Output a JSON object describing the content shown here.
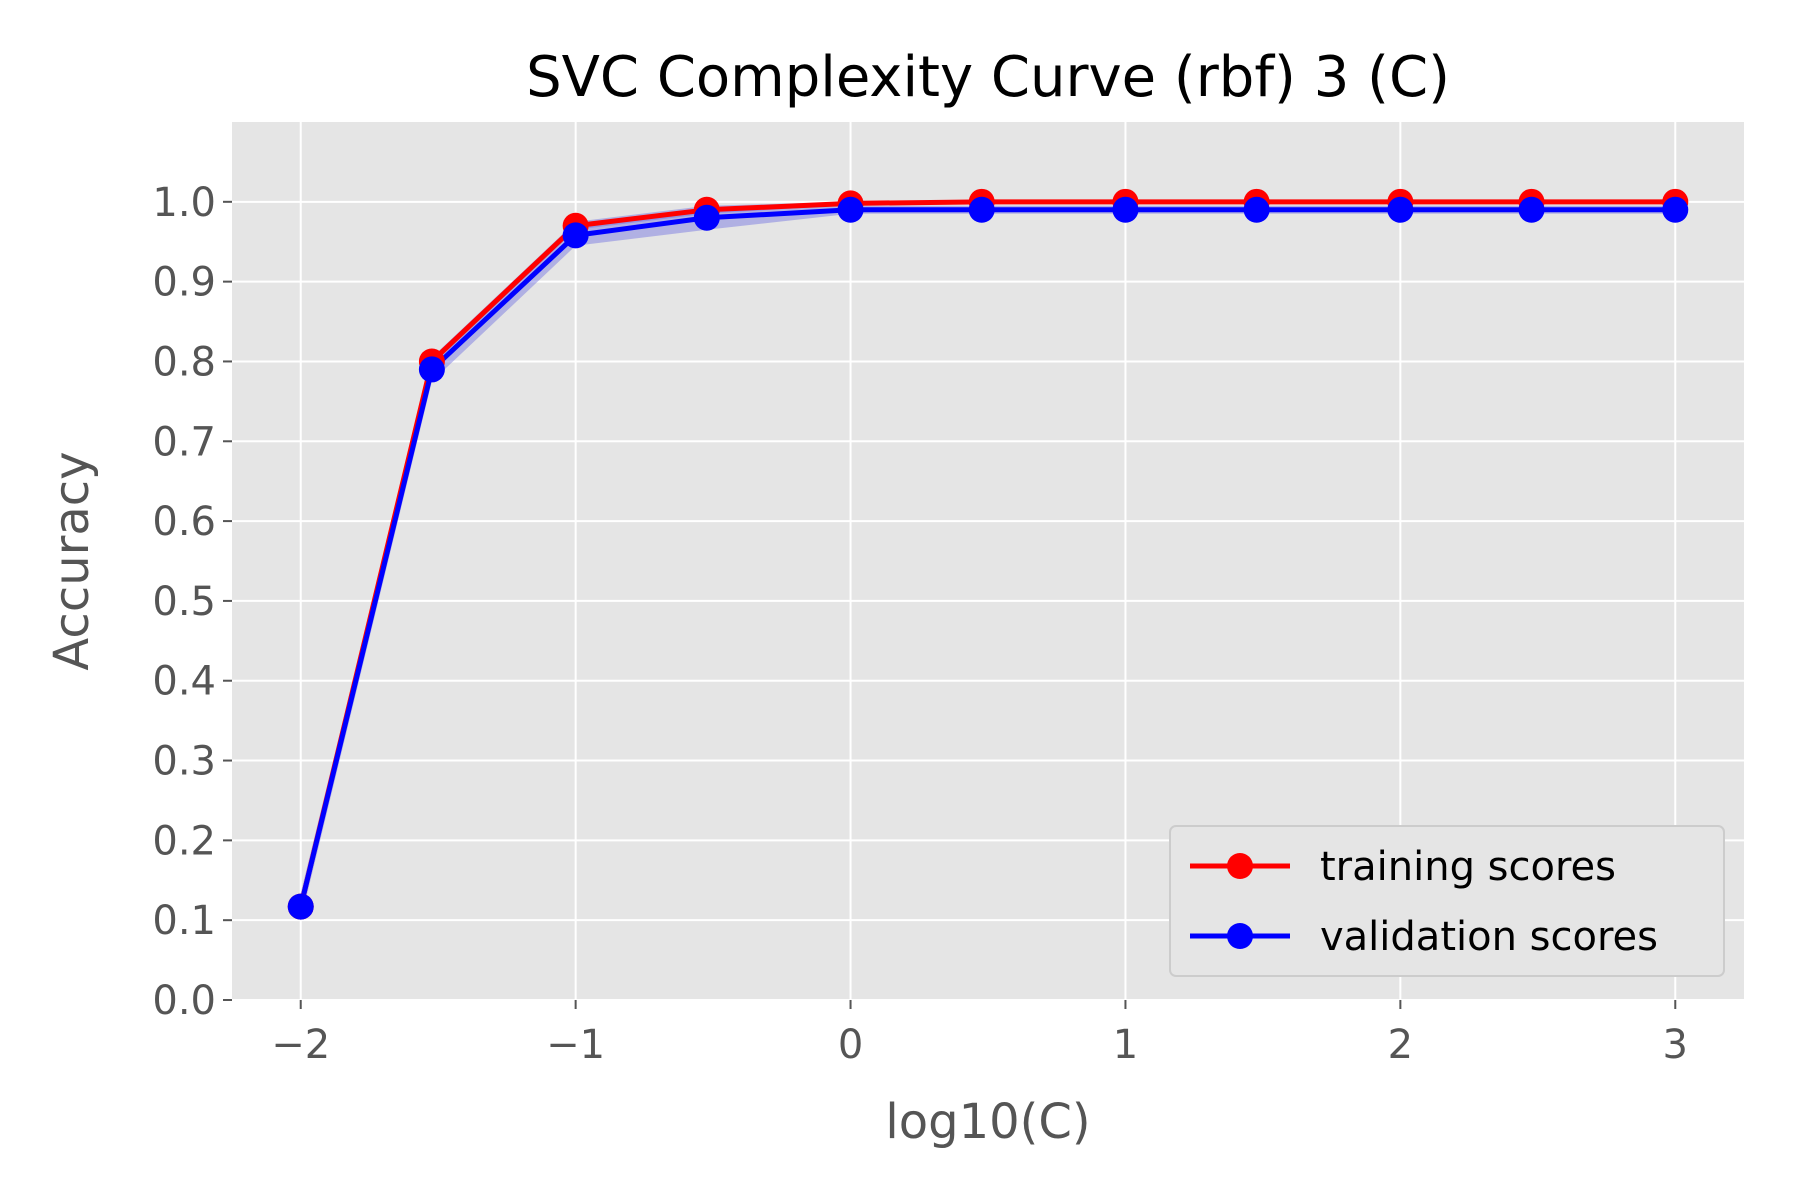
{
  "chart_data": {
    "type": "line",
    "title": "SVC Complexity Curve (rbf) 3 (C)",
    "xlabel": "log10(C)",
    "ylabel": "Accuracy",
    "xlim": [
      -2.25,
      3.25
    ],
    "ylim": [
      0.0,
      1.1
    ],
    "xticks": [
      -2,
      -1,
      0,
      1,
      2,
      3
    ],
    "xtick_labels": [
      "−2",
      "−1",
      "0",
      "1",
      "2",
      "3"
    ],
    "yticks": [
      0.0,
      0.1,
      0.2,
      0.3,
      0.4,
      0.5,
      0.6,
      0.7,
      0.8,
      0.9,
      1.0
    ],
    "ytick_labels": [
      "0.0",
      "0.1",
      "0.2",
      "0.3",
      "0.4",
      "0.5",
      "0.6",
      "0.7",
      "0.8",
      "0.9",
      "1.0"
    ],
    "grid": true,
    "legend_position": "lower-right",
    "x": [
      -2.0,
      -1.5229,
      -1.0,
      -0.5229,
      0.0,
      0.4771,
      1.0,
      1.4771,
      2.0,
      2.4771,
      3.0
    ],
    "series": [
      {
        "name": "training scores",
        "color": "#ff0000",
        "values": [
          0.117,
          0.8,
          0.97,
          0.99,
          0.998,
          1.0,
          1.0,
          1.0,
          1.0,
          1.0,
          1.0
        ],
        "band_lower": [
          0.11,
          0.795,
          0.965,
          0.985,
          0.996,
          0.999,
          1.0,
          1.0,
          1.0,
          1.0,
          1.0
        ],
        "band_upper": [
          0.124,
          0.805,
          0.975,
          0.995,
          1.0,
          1.0,
          1.0,
          1.0,
          1.0,
          1.0,
          1.0
        ]
      },
      {
        "name": "validation scores",
        "color": "#0000ff",
        "values": [
          0.117,
          0.79,
          0.958,
          0.98,
          0.99,
          0.99,
          0.99,
          0.99,
          0.99,
          0.99,
          0.99
        ],
        "band_lower": [
          0.1,
          0.775,
          0.945,
          0.965,
          0.985,
          0.985,
          0.985,
          0.985,
          0.985,
          0.985,
          0.985
        ],
        "band_upper": [
          0.134,
          0.805,
          0.972,
          0.99,
          0.995,
          0.995,
          0.995,
          0.995,
          0.995,
          0.995,
          0.995
        ]
      }
    ],
    "colors": {
      "axes_background": "#e5e5e5",
      "grid": "#ffffff",
      "tick_label": "#555555",
      "band_fill": "#6f6fe0"
    }
  }
}
